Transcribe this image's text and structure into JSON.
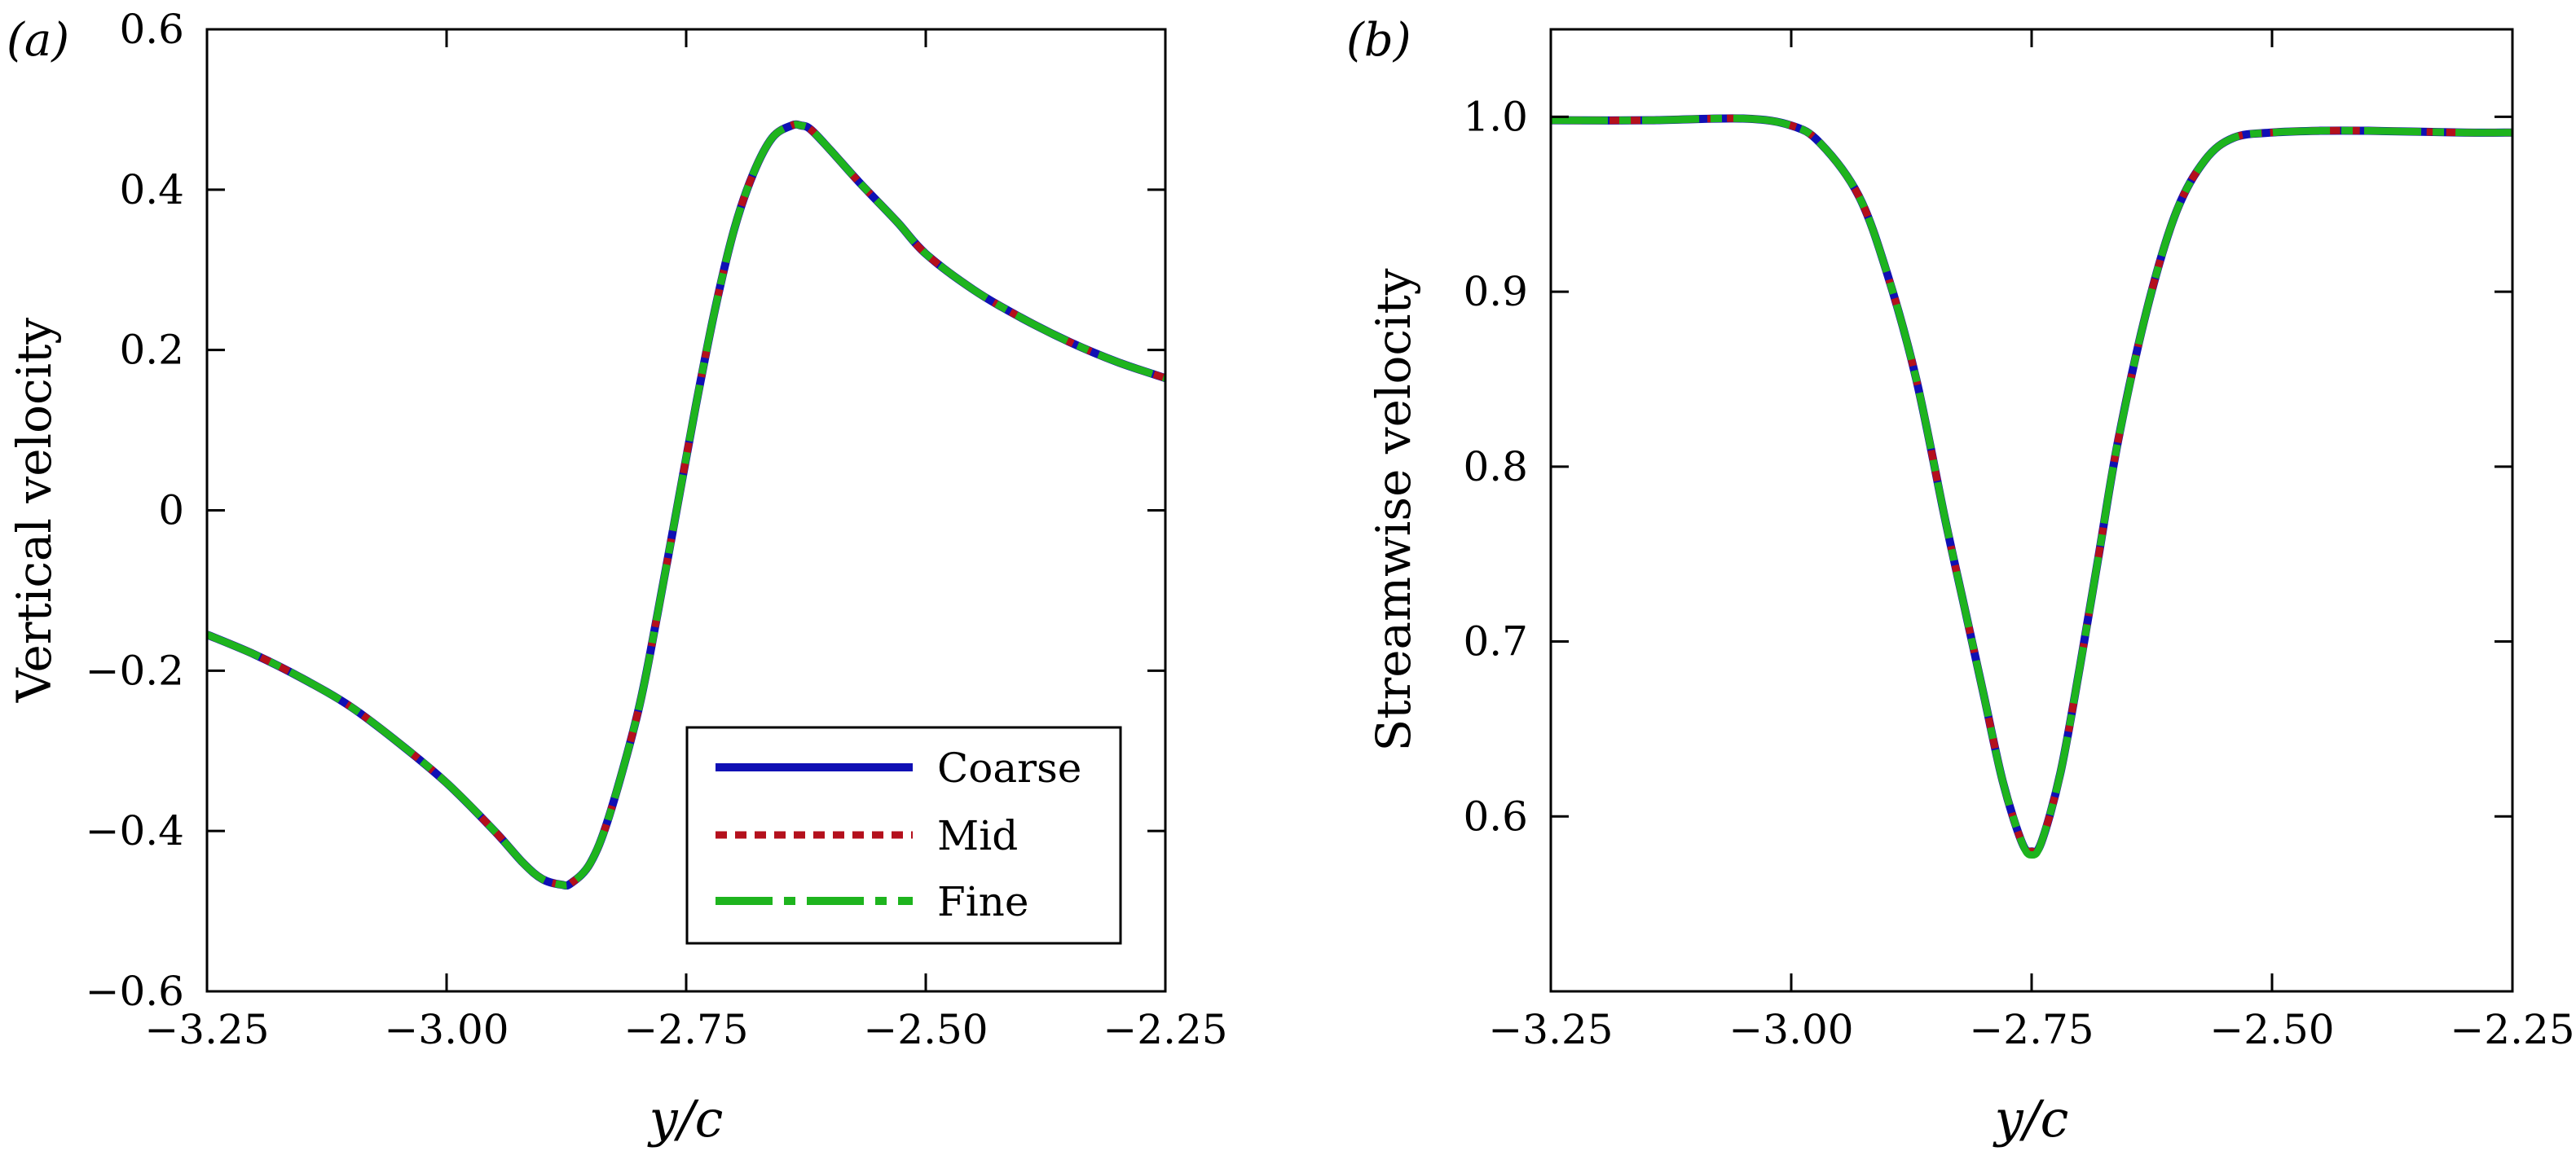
{
  "figure": {
    "panels": [
      "(a)",
      "(b)"
    ]
  },
  "legend": {
    "entries": [
      {
        "name": "Coarse",
        "color": "#1010b4",
        "style": "solid"
      },
      {
        "name": "Mid",
        "color": "#b4101c",
        "style": "dotted"
      },
      {
        "name": "Fine",
        "color": "#1eb41e",
        "style": "dash-dot"
      }
    ]
  },
  "chart_data": [
    {
      "type": "line",
      "panel": "(a)",
      "title": "",
      "xlabel": "y/c",
      "ylabel": "Vertical velocity",
      "xlim": [
        -3.25,
        -2.25
      ],
      "ylim": [
        -0.6,
        0.6
      ],
      "xticks": [
        -3.25,
        -3.0,
        -2.75,
        -2.5,
        -2.25
      ],
      "xtick_labels": [
        "−3.25",
        "−3.00",
        "−2.75",
        "−2.50",
        "−2.25"
      ],
      "yticks": [
        -0.6,
        -0.4,
        -0.2,
        0,
        0.2,
        0.4,
        0.6
      ],
      "ytick_labels": [
        "−0.6",
        "−0.4",
        "−0.2",
        "0",
        "0.2",
        "0.4",
        "0.6"
      ],
      "grid": false,
      "legend_position": "lower-right",
      "x": [
        -3.25,
        -3.2,
        -3.15,
        -3.1,
        -3.05,
        -3.0,
        -2.95,
        -2.92,
        -2.9,
        -2.88,
        -2.87,
        -2.85,
        -2.83,
        -2.8,
        -2.78,
        -2.76,
        -2.74,
        -2.72,
        -2.7,
        -2.68,
        -2.66,
        -2.64,
        -2.63,
        -2.62,
        -2.6,
        -2.57,
        -2.53,
        -2.5,
        -2.45,
        -2.4,
        -2.35,
        -2.3,
        -2.25
      ],
      "series": [
        {
          "name": "Coarse",
          "values": [
            -0.155,
            -0.18,
            -0.21,
            -0.245,
            -0.29,
            -0.34,
            -0.4,
            -0.44,
            -0.46,
            -0.467,
            -0.465,
            -0.44,
            -0.38,
            -0.25,
            -0.13,
            0.0,
            0.13,
            0.25,
            0.35,
            0.42,
            0.465,
            0.48,
            0.48,
            0.475,
            0.45,
            0.41,
            0.36,
            0.32,
            0.275,
            0.24,
            0.21,
            0.185,
            0.165
          ]
        },
        {
          "name": "Mid",
          "values": [
            -0.155,
            -0.18,
            -0.21,
            -0.245,
            -0.29,
            -0.34,
            -0.4,
            -0.44,
            -0.46,
            -0.467,
            -0.465,
            -0.44,
            -0.38,
            -0.25,
            -0.13,
            0.0,
            0.13,
            0.25,
            0.35,
            0.42,
            0.465,
            0.48,
            0.48,
            0.475,
            0.45,
            0.41,
            0.36,
            0.32,
            0.275,
            0.24,
            0.21,
            0.185,
            0.165
          ]
        },
        {
          "name": "Fine",
          "values": [
            -0.155,
            -0.18,
            -0.21,
            -0.245,
            -0.29,
            -0.34,
            -0.4,
            -0.44,
            -0.46,
            -0.467,
            -0.465,
            -0.44,
            -0.38,
            -0.25,
            -0.13,
            0.0,
            0.13,
            0.25,
            0.35,
            0.42,
            0.465,
            0.48,
            0.48,
            0.475,
            0.45,
            0.41,
            0.36,
            0.32,
            0.275,
            0.24,
            0.21,
            0.185,
            0.165
          ]
        }
      ]
    },
    {
      "type": "line",
      "panel": "(b)",
      "title": "",
      "xlabel": "y/c",
      "ylabel": "Streamwise velocity",
      "xlim": [
        -3.25,
        -2.25
      ],
      "ylim": [
        0.5,
        1.05
      ],
      "xticks": [
        -3.25,
        -3.0,
        -2.75,
        -2.5,
        -2.25
      ],
      "xtick_labels": [
        "−3.25",
        "−3.00",
        "−2.75",
        "−2.50",
        "−2.25"
      ],
      "yticks": [
        0.6,
        0.7,
        0.8,
        0.9,
        1.0
      ],
      "ytick_labels": [
        "0.6",
        "0.7",
        "0.8",
        "0.9",
        "1.0"
      ],
      "grid": false,
      "x": [
        -3.25,
        -3.15,
        -3.05,
        -3.0,
        -2.97,
        -2.93,
        -2.9,
        -2.87,
        -2.84,
        -2.82,
        -2.8,
        -2.78,
        -2.76,
        -2.75,
        -2.74,
        -2.72,
        -2.7,
        -2.68,
        -2.66,
        -2.63,
        -2.6,
        -2.57,
        -2.54,
        -2.5,
        -2.45,
        -2.4,
        -2.3,
        -2.25
      ],
      "series": [
        {
          "name": "Coarse",
          "values": [
            0.998,
            0.998,
            0.999,
            0.995,
            0.985,
            0.955,
            0.91,
            0.85,
            0.77,
            0.72,
            0.67,
            0.62,
            0.585,
            0.58,
            0.585,
            0.625,
            0.685,
            0.75,
            0.815,
            0.89,
            0.945,
            0.975,
            0.988,
            0.991,
            0.992,
            0.992,
            0.991,
            0.991
          ]
        },
        {
          "name": "Mid",
          "values": [
            0.998,
            0.998,
            0.999,
            0.995,
            0.985,
            0.955,
            0.91,
            0.85,
            0.77,
            0.72,
            0.67,
            0.62,
            0.585,
            0.58,
            0.585,
            0.625,
            0.685,
            0.75,
            0.815,
            0.89,
            0.945,
            0.975,
            0.988,
            0.991,
            0.992,
            0.992,
            0.991,
            0.991
          ]
        },
        {
          "name": "Fine",
          "values": [
            0.998,
            0.998,
            0.999,
            0.995,
            0.985,
            0.955,
            0.91,
            0.85,
            0.77,
            0.72,
            0.67,
            0.62,
            0.585,
            0.578,
            0.585,
            0.625,
            0.685,
            0.75,
            0.815,
            0.89,
            0.945,
            0.975,
            0.988,
            0.991,
            0.992,
            0.992,
            0.991,
            0.991
          ]
        }
      ]
    }
  ]
}
